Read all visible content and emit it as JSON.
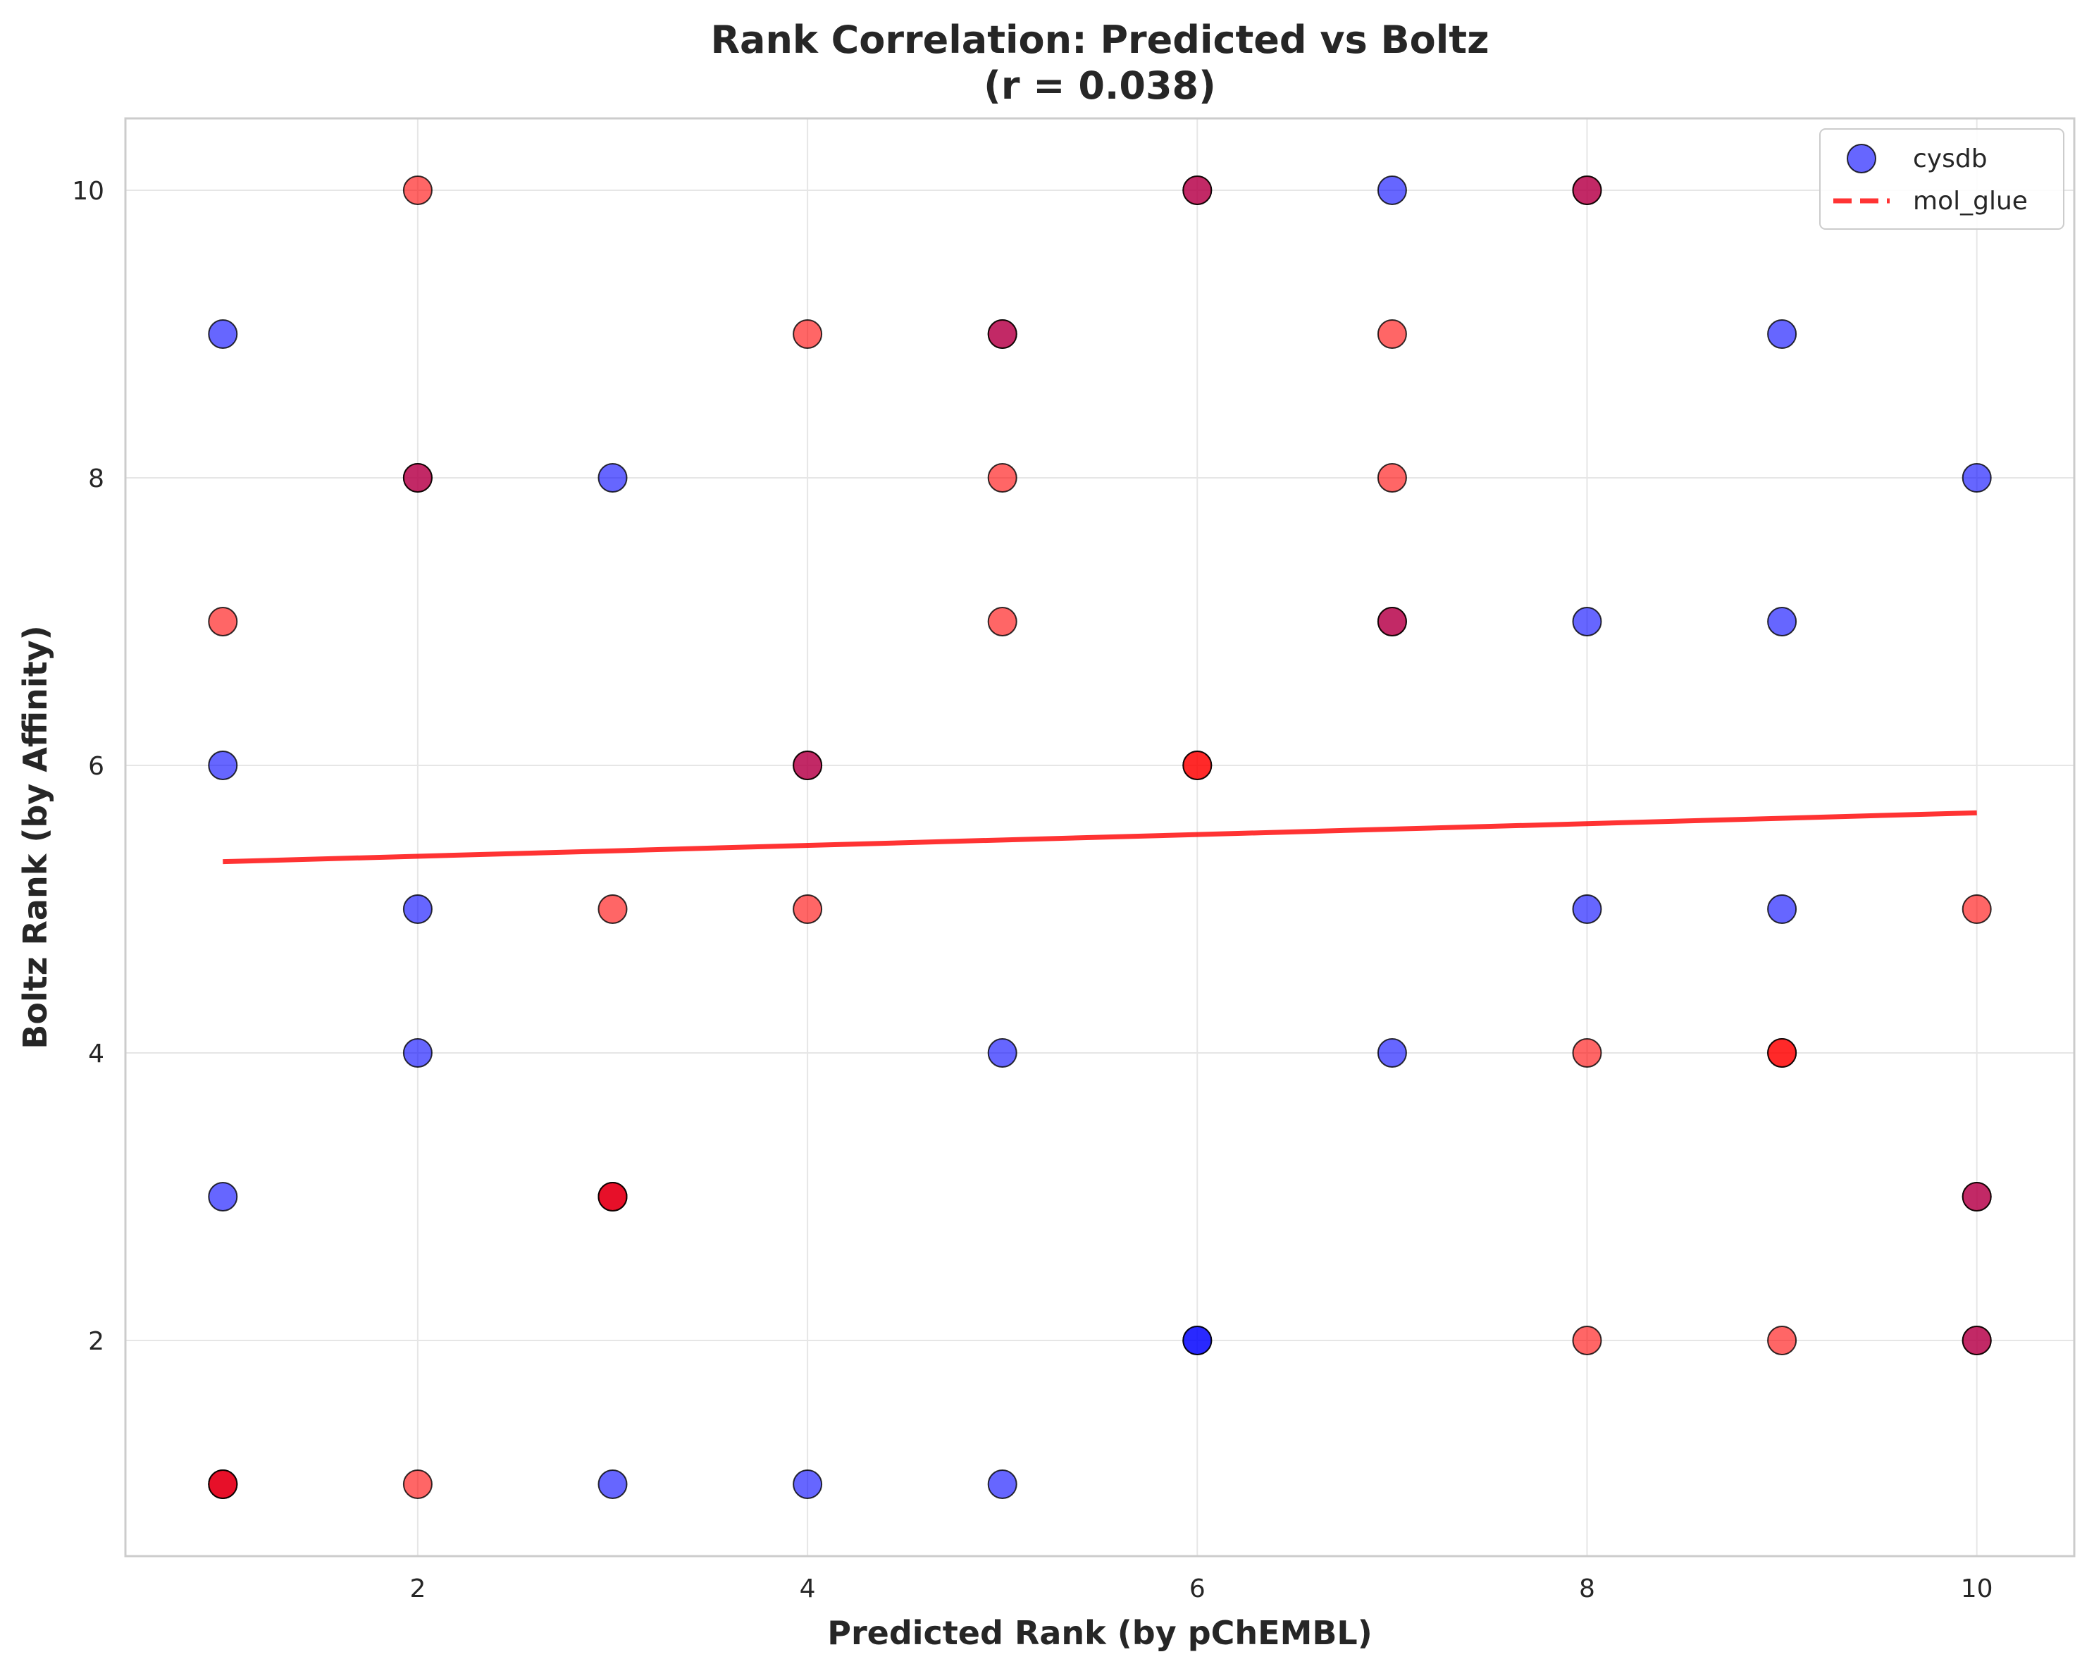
{
  "chart_data": {
    "type": "scatter",
    "title": "Rank Correlation: Predicted vs Boltz",
    "subtitle": "(r = 0.038)",
    "xlabel": "Predicted Rank (by pChEMBL)",
    "ylabel": "Boltz Rank (by Affinity)",
    "xlim": [
      0.5,
      10.5
    ],
    "ylim": [
      0.5,
      10.5
    ],
    "xticks": [
      2,
      4,
      6,
      8,
      10
    ],
    "yticks": [
      2,
      4,
      6,
      8,
      10
    ],
    "grid": true,
    "legend_position": "top-right",
    "series": [
      {
        "name": "cysdb",
        "color": "#0000ff",
        "points": [
          [
            1,
            9
          ],
          [
            1,
            6
          ],
          [
            1,
            3
          ],
          [
            1,
            1
          ],
          [
            2,
            8
          ],
          [
            2,
            5
          ],
          [
            2,
            4
          ],
          [
            3,
            8
          ],
          [
            3,
            3
          ],
          [
            3,
            1
          ],
          [
            4,
            6
          ],
          [
            4,
            1
          ],
          [
            5,
            9
          ],
          [
            5,
            4
          ],
          [
            5,
            1
          ],
          [
            6,
            10
          ],
          [
            6,
            2
          ],
          [
            6,
            2
          ],
          [
            7,
            10
          ],
          [
            7,
            7
          ],
          [
            7,
            4
          ],
          [
            8,
            10
          ],
          [
            8,
            7
          ],
          [
            8,
            5
          ],
          [
            9,
            9
          ],
          [
            9,
            7
          ],
          [
            9,
            5
          ],
          [
            10,
            8
          ],
          [
            10,
            3
          ],
          [
            10,
            2
          ]
        ]
      },
      {
        "name": "mol_glue",
        "color": "#ff0000",
        "points": [
          [
            1,
            7
          ],
          [
            1,
            1
          ],
          [
            1,
            1
          ],
          [
            2,
            10
          ],
          [
            2,
            8
          ],
          [
            2,
            1
          ],
          [
            3,
            5
          ],
          [
            3,
            3
          ],
          [
            3,
            3
          ],
          [
            4,
            9
          ],
          [
            4,
            6
          ],
          [
            4,
            5
          ],
          [
            5,
            9
          ],
          [
            5,
            8
          ],
          [
            5,
            7
          ],
          [
            6,
            10
          ],
          [
            6,
            6
          ],
          [
            6,
            6
          ],
          [
            7,
            9
          ],
          [
            7,
            8
          ],
          [
            7,
            7
          ],
          [
            8,
            10
          ],
          [
            8,
            4
          ],
          [
            8,
            2
          ],
          [
            9,
            4
          ],
          [
            9,
            4
          ],
          [
            9,
            2
          ],
          [
            10,
            5
          ],
          [
            10,
            3
          ],
          [
            10,
            2
          ]
        ]
      }
    ],
    "trend_line": {
      "name": "mol_glue",
      "color": "#ff0000",
      "x": [
        1,
        10
      ],
      "y": [
        5.33,
        5.67
      ]
    }
  }
}
